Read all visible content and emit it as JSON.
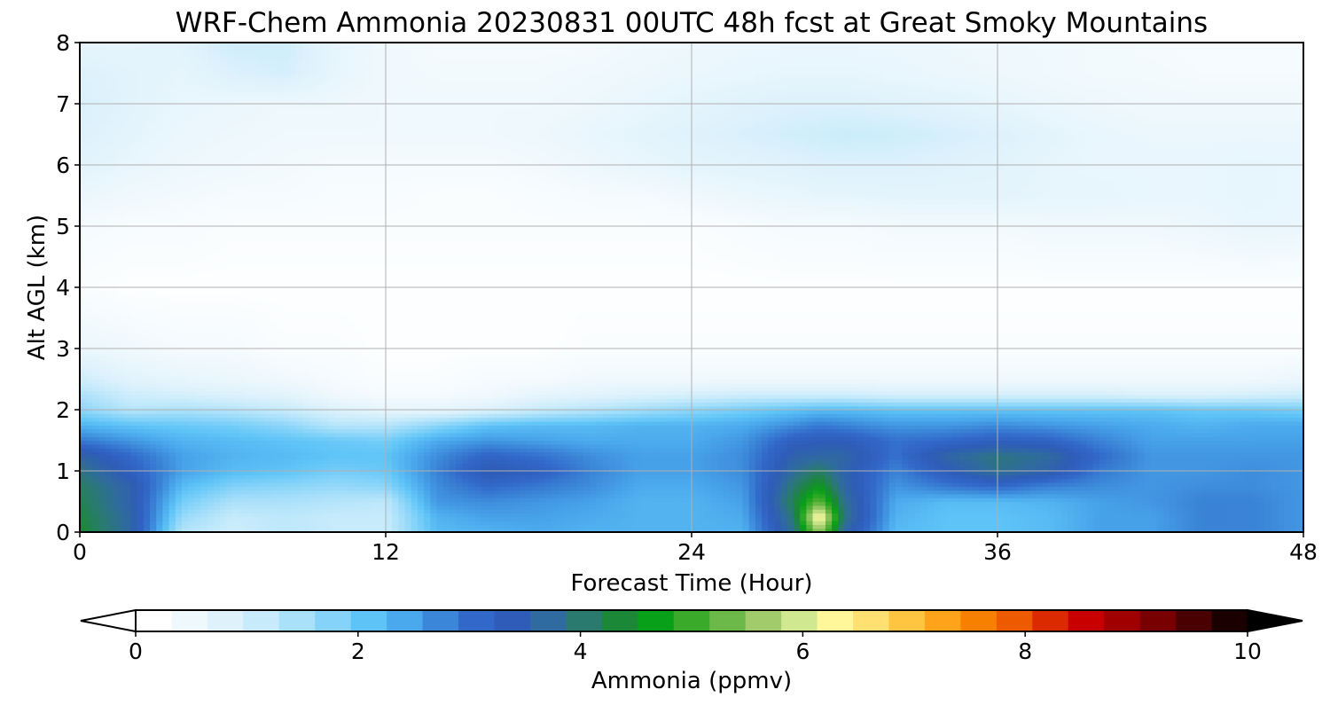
{
  "chart_data": {
    "type": "heatmap",
    "title": "WRF-Chem Ammonia  20230831 00UTC 48h fcst at Great Smoky Mountains",
    "xlabel": "Forecast Time (Hour)",
    "ylabel": "Alt AGL (km)",
    "xlim": [
      0,
      48
    ],
    "ylim": [
      0,
      8
    ],
    "x_ticks": [
      "0",
      "12",
      "24",
      "36",
      "48"
    ],
    "y_ticks": [
      "0",
      "1",
      "2",
      "3",
      "4",
      "5",
      "6",
      "7",
      "8"
    ],
    "grid": true,
    "x": [
      0,
      2,
      4,
      6,
      8,
      10,
      12,
      14,
      16,
      18,
      20,
      22,
      24,
      26,
      28,
      29,
      30,
      32,
      34,
      36,
      38,
      40,
      42,
      44,
      46,
      48
    ],
    "y": [
      0,
      0.25,
      0.5,
      0.75,
      1.0,
      1.25,
      1.5,
      1.75,
      2.0,
      2.25,
      2.5,
      3,
      4,
      5,
      5.5,
      6,
      6.5,
      7,
      7.5,
      8
    ],
    "values": [
      [
        4.4,
        3.6,
        1.2,
        0.9,
        1.1,
        1.0,
        1.0,
        2.1,
        2.2,
        2.3,
        2.2,
        2.2,
        2.2,
        2.2,
        3.8,
        5.6,
        3.6,
        2.1,
        2.0,
        2.0,
        2.1,
        2.4,
        2.4,
        2.7,
        2.7,
        2.5
      ],
      [
        4.3,
        3.6,
        1.5,
        1.0,
        1.1,
        1.0,
        1.0,
        2.2,
        2.4,
        2.4,
        2.3,
        2.2,
        2.2,
        2.3,
        4.0,
        6.6,
        3.9,
        2.2,
        2.0,
        2.0,
        2.1,
        2.4,
        2.4,
        2.7,
        2.7,
        2.5
      ],
      [
        4.2,
        3.5,
        1.8,
        1.3,
        1.3,
        1.2,
        1.1,
        2.5,
        2.6,
        2.5,
        2.4,
        2.2,
        2.2,
        2.4,
        4.2,
        5.3,
        3.8,
        2.3,
        2.1,
        2.1,
        2.2,
        2.4,
        2.5,
        2.7,
        2.7,
        2.5
      ],
      [
        4.1,
        3.5,
        2.1,
        1.7,
        1.6,
        1.5,
        1.6,
        2.6,
        3.0,
        2.8,
        2.6,
        2.3,
        2.3,
        2.5,
        4.0,
        4.6,
        3.6,
        2.5,
        2.8,
        3.0,
        2.7,
        2.6,
        2.5,
        2.6,
        2.6,
        2.5
      ],
      [
        3.9,
        3.2,
        2.4,
        2.1,
        2.0,
        1.8,
        1.9,
        2.7,
        3.4,
        3.2,
        2.7,
        2.4,
        2.4,
        2.6,
        3.7,
        4.1,
        3.5,
        2.7,
        3.3,
        3.8,
        3.5,
        2.8,
        2.5,
        2.5,
        2.6,
        2.5
      ],
      [
        3.6,
        3.0,
        2.4,
        2.2,
        2.1,
        2.0,
        2.0,
        2.6,
        3.1,
        2.9,
        2.6,
        2.4,
        2.4,
        2.6,
        3.5,
        3.6,
        3.6,
        2.9,
        3.6,
        3.9,
        3.7,
        3.0,
        2.5,
        2.5,
        2.5,
        2.5
      ],
      [
        2.8,
        2.5,
        2.2,
        2.1,
        2.0,
        1.9,
        1.8,
        2.3,
        2.5,
        2.4,
        2.3,
        2.3,
        2.3,
        2.5,
        3.2,
        3.3,
        3.3,
        2.9,
        3.0,
        3.2,
        3.1,
        2.7,
        2.4,
        2.4,
        2.4,
        2.4
      ],
      [
        2.2,
        2.0,
        1.9,
        1.8,
        1.6,
        1.2,
        1.2,
        1.6,
        2.0,
        2.1,
        2.1,
        2.2,
        2.2,
        2.3,
        2.6,
        2.8,
        2.7,
        2.5,
        2.5,
        2.6,
        2.5,
        2.4,
        2.3,
        2.2,
        2.3,
        2.3
      ],
      [
        1.6,
        1.2,
        1.3,
        1.2,
        1.0,
        0.7,
        0.5,
        0.5,
        0.7,
        1.0,
        1.2,
        1.4,
        1.6,
        1.8,
        2.0,
        2.1,
        2.1,
        2.0,
        2.0,
        2.0,
        2.0,
        2.0,
        2.0,
        1.9,
        1.9,
        1.8
      ],
      [
        1.3,
        0.9,
        0.8,
        0.7,
        0.6,
        0.3,
        0.2,
        0.2,
        0.3,
        0.5,
        0.6,
        0.7,
        0.8,
        0.9,
        0.9,
        0.9,
        0.9,
        0.8,
        0.8,
        0.8,
        0.8,
        0.8,
        0.7,
        0.7,
        0.8,
        0.9
      ],
      [
        0.9,
        0.6,
        0.5,
        0.4,
        0.3,
        0.2,
        0.1,
        0.1,
        0.2,
        0.2,
        0.3,
        0.3,
        0.3,
        0.3,
        0.3,
        0.3,
        0.3,
        0.3,
        0.3,
        0.3,
        0.3,
        0.3,
        0.3,
        0.3,
        0.3,
        0.4
      ],
      [
        0.4,
        0.3,
        0.2,
        0.2,
        0.1,
        0.1,
        0.05,
        0.05,
        0.05,
        0.05,
        0.1,
        0.1,
        0.1,
        0.1,
        0.1,
        0.1,
        0.1,
        0.1,
        0.1,
        0.1,
        0.1,
        0.1,
        0.1,
        0.1,
        0.1,
        0.1
      ],
      [
        0.1,
        0.05,
        0.05,
        0.05,
        0.05,
        0.05,
        0.05,
        0.05,
        0.05,
        0.05,
        0.05,
        0.05,
        0.05,
        0.05,
        0.05,
        0.05,
        0.05,
        0.05,
        0.05,
        0.05,
        0.05,
        0.05,
        0.05,
        0.05,
        0.05,
        0.05
      ],
      [
        0.2,
        0.15,
        0.15,
        0.1,
        0.1,
        0.1,
        0.1,
        0.1,
        0.1,
        0.1,
        0.1,
        0.1,
        0.1,
        0.15,
        0.2,
        0.2,
        0.2,
        0.25,
        0.25,
        0.25,
        0.3,
        0.3,
        0.3,
        0.35,
        0.45,
        0.4
      ],
      [
        0.4,
        0.3,
        0.25,
        0.2,
        0.2,
        0.15,
        0.15,
        0.1,
        0.1,
        0.15,
        0.2,
        0.2,
        0.3,
        0.4,
        0.45,
        0.5,
        0.5,
        0.55,
        0.55,
        0.55,
        0.5,
        0.5,
        0.45,
        0.45,
        0.5,
        0.45
      ],
      [
        0.6,
        0.45,
        0.35,
        0.3,
        0.25,
        0.2,
        0.2,
        0.2,
        0.2,
        0.25,
        0.35,
        0.45,
        0.55,
        0.6,
        0.65,
        0.7,
        0.7,
        0.7,
        0.65,
        0.6,
        0.5,
        0.45,
        0.45,
        0.45,
        0.5,
        0.45
      ],
      [
        0.7,
        0.55,
        0.4,
        0.35,
        0.3,
        0.3,
        0.3,
        0.3,
        0.3,
        0.35,
        0.45,
        0.55,
        0.65,
        0.75,
        0.85,
        0.9,
        0.95,
        0.9,
        0.8,
        0.7,
        0.55,
        0.45,
        0.4,
        0.4,
        0.4,
        0.4
      ],
      [
        0.75,
        0.6,
        0.45,
        0.4,
        0.35,
        0.35,
        0.3,
        0.3,
        0.3,
        0.3,
        0.35,
        0.45,
        0.55,
        0.65,
        0.7,
        0.7,
        0.7,
        0.65,
        0.6,
        0.5,
        0.4,
        0.35,
        0.3,
        0.3,
        0.3,
        0.3
      ],
      [
        0.7,
        0.6,
        0.5,
        0.7,
        0.8,
        0.5,
        0.3,
        0.25,
        0.25,
        0.25,
        0.3,
        0.35,
        0.4,
        0.45,
        0.5,
        0.5,
        0.5,
        0.45,
        0.4,
        0.35,
        0.3,
        0.25,
        0.25,
        0.2,
        0.2,
        0.2
      ],
      [
        0.5,
        0.5,
        0.6,
        0.9,
        0.9,
        0.5,
        0.3,
        0.2,
        0.2,
        0.2,
        0.2,
        0.3,
        0.35,
        0.4,
        0.4,
        0.4,
        0.4,
        0.4,
        0.35,
        0.3,
        0.3,
        0.25,
        0.2,
        0.2,
        0.2,
        0.2
      ]
    ],
    "colorbar": {
      "label": "Ammonia  (ppmv)",
      "min": 0,
      "max": 10,
      "ticks": [
        "0",
        "2",
        "4",
        "6",
        "8",
        "10"
      ],
      "extend": "both",
      "colors": [
        "#ffffff",
        "#eef8fd",
        "#dff2fc",
        "#c7ebfb",
        "#a9e0fa",
        "#85d3f9",
        "#5ec4f7",
        "#4aa8ec",
        "#3b86d8",
        "#3268c9",
        "#2e5cb8",
        "#2f6aa0",
        "#2a7a70",
        "#1b8838",
        "#08a018",
        "#3aaa2a",
        "#6cb848",
        "#a2cc6c",
        "#d0e890",
        "#fff79a",
        "#ffe070",
        "#ffc440",
        "#ffa31a",
        "#f88000",
        "#ee5a00",
        "#dc2a00",
        "#c80000",
        "#a00000",
        "#780000",
        "#4a0000",
        "#1a0000"
      ]
    }
  }
}
